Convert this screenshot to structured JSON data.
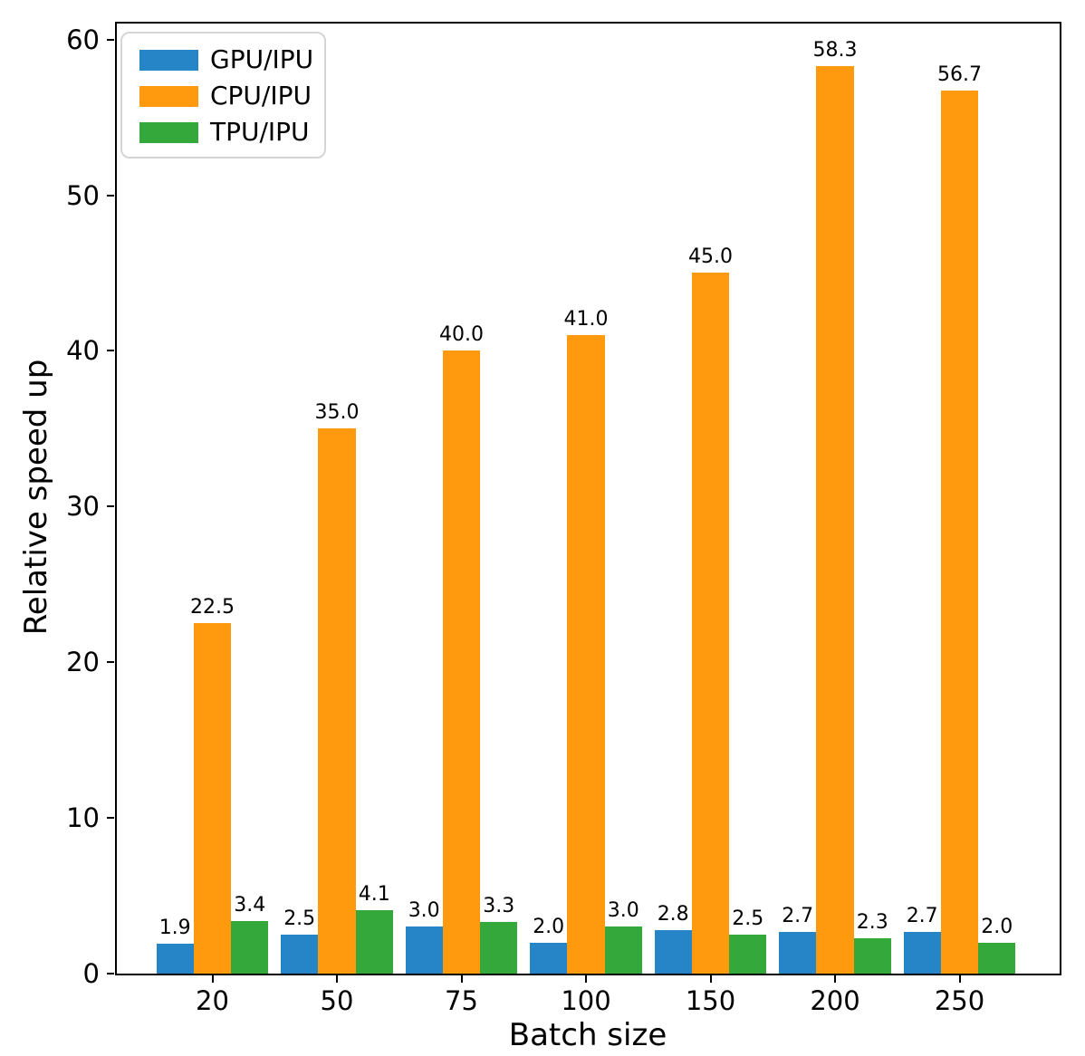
{
  "chart_data": {
    "type": "bar",
    "title": "",
    "xlabel": "Batch size",
    "ylabel": "Relative speed up",
    "categories": [
      "20",
      "50",
      "75",
      "100",
      "150",
      "200",
      "250"
    ],
    "series": [
      {
        "name": "GPU/IPU",
        "color": "#2585c7",
        "values": [
          1.9,
          2.5,
          3.0,
          2.0,
          2.8,
          2.7,
          2.7
        ],
        "value_labels": [
          "1.9",
          "2.5",
          "3.0",
          "2.0",
          "2.8",
          "2.7",
          "2.7"
        ]
      },
      {
        "name": "CPU/IPU",
        "color": "#ff990e",
        "values": [
          22.5,
          35.0,
          40.0,
          41.0,
          45.0,
          58.3,
          56.7
        ],
        "value_labels": [
          "22.5",
          "35.0",
          "40.0",
          "41.0",
          "45.0",
          "58.3",
          "56.7"
        ]
      },
      {
        "name": "TPU/IPU",
        "color": "#35a83c",
        "values": [
          3.4,
          4.1,
          3.3,
          3.0,
          2.5,
          2.3,
          2.0
        ],
        "value_labels": [
          "3.4",
          "4.1",
          "3.3",
          "3.0",
          "2.5",
          "2.3",
          "2.0"
        ]
      }
    ],
    "yticks": {
      "values": [
        0,
        10,
        20,
        30,
        40,
        50,
        60
      ],
      "labels": [
        "0",
        "10",
        "20",
        "30",
        "40",
        "50",
        "60"
      ]
    },
    "ylim": [
      0,
      61.2
    ],
    "grid": false,
    "legend_position": "upper-left",
    "bar_value_labels": true,
    "axis_color": "#000000",
    "text_color": "#000000",
    "background_color": "#ffffff"
  }
}
